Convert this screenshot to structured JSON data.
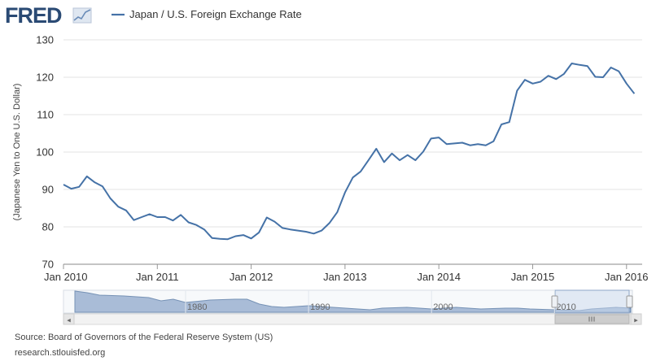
{
  "brand": {
    "name": "FRED",
    "icon": "fred-sparkline-icon",
    "color": "#2a4a74"
  },
  "legend": {
    "label": "Japan / U.S. Foreign Exchange Rate",
    "color": "#4572a7"
  },
  "footer": {
    "source": "Source: Board of Governors of the Federal Reserve System (US)",
    "url": "research.stlouisfed.org"
  },
  "navigator": {
    "ticks": [
      "1980",
      "1990",
      "2000",
      "2010"
    ],
    "scroll_icon": "grip-icon",
    "arrow_left": "◂",
    "arrow_right": "▸"
  },
  "chart_data": {
    "type": "line",
    "title": "",
    "xlabel": "",
    "ylabel": "(Japanese Yen to One U.S. Dollar)",
    "ylim": [
      70,
      130
    ],
    "yticks": [
      70,
      80,
      90,
      100,
      110,
      120,
      130
    ],
    "xlim": [
      "2010-01",
      "2016-03"
    ],
    "xticks": [
      "Jan 2010",
      "Jan 2011",
      "Jan 2012",
      "Jan 2013",
      "Jan 2014",
      "Jan 2015",
      "Jan 2016"
    ],
    "grid": true,
    "series": [
      {
        "name": "Japan / U.S. Foreign Exchange Rate",
        "color": "#4572a7",
        "x": [
          "2010-01",
          "2010-02",
          "2010-03",
          "2010-04",
          "2010-05",
          "2010-06",
          "2010-07",
          "2010-08",
          "2010-09",
          "2010-10",
          "2010-11",
          "2010-12",
          "2011-01",
          "2011-02",
          "2011-03",
          "2011-04",
          "2011-05",
          "2011-06",
          "2011-07",
          "2011-08",
          "2011-09",
          "2011-10",
          "2011-11",
          "2011-12",
          "2012-01",
          "2012-02",
          "2012-03",
          "2012-04",
          "2012-05",
          "2012-06",
          "2012-07",
          "2012-08",
          "2012-09",
          "2012-10",
          "2012-11",
          "2012-12",
          "2013-01",
          "2013-02",
          "2013-03",
          "2013-04",
          "2013-05",
          "2013-06",
          "2013-07",
          "2013-08",
          "2013-09",
          "2013-10",
          "2013-11",
          "2013-12",
          "2014-01",
          "2014-02",
          "2014-03",
          "2014-04",
          "2014-05",
          "2014-06",
          "2014-07",
          "2014-08",
          "2014-09",
          "2014-10",
          "2014-11",
          "2014-12",
          "2015-01",
          "2015-02",
          "2015-03",
          "2015-04",
          "2015-05",
          "2015-06",
          "2015-07",
          "2015-08",
          "2015-09",
          "2015-10",
          "2015-11",
          "2015-12",
          "2016-01",
          "2016-02"
        ],
        "values": [
          91.3,
          90.2,
          90.7,
          93.5,
          91.9,
          90.8,
          87.6,
          85.4,
          84.4,
          81.8,
          82.6,
          83.4,
          82.6,
          82.6,
          81.7,
          83.2,
          81.2,
          80.5,
          79.3,
          77.0,
          76.8,
          76.7,
          77.5,
          77.8,
          76.9,
          78.5,
          82.5,
          81.4,
          79.7,
          79.3,
          79.0,
          78.7,
          78.2,
          79.0,
          81.0,
          83.9,
          89.2,
          93.2,
          94.8,
          97.8,
          100.9,
          97.3,
          99.6,
          97.8,
          99.2,
          97.8,
          100.1,
          103.6,
          103.9,
          102.1,
          102.3,
          102.5,
          101.8,
          102.1,
          101.8,
          102.9,
          107.4,
          108.0,
          116.4,
          119.3,
          118.3,
          118.8,
          120.4,
          119.5,
          120.9,
          123.7,
          123.3,
          123.0,
          120.1,
          120.0,
          122.6,
          121.6,
          118.3,
          115.6
        ]
      }
    ]
  }
}
